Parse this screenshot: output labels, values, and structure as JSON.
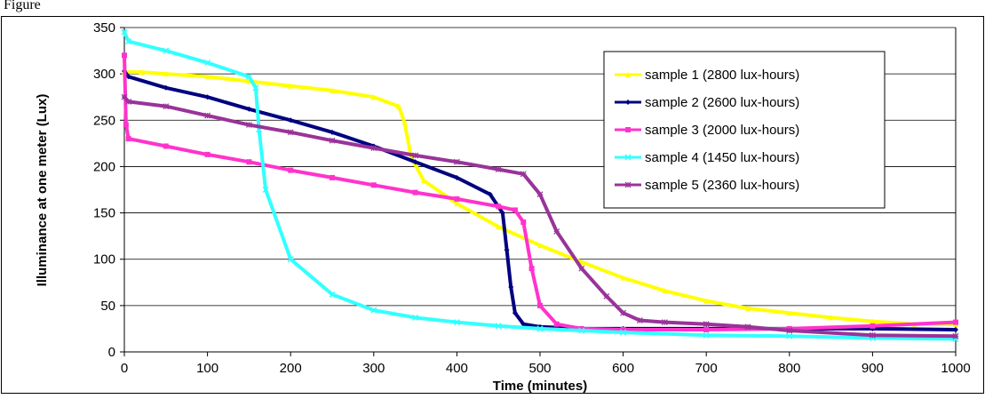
{
  "header": {
    "text": "Figure"
  },
  "chart_data": {
    "type": "line",
    "title": "",
    "xlabel": "Time (minutes)",
    "ylabel": "Illuminance at one meter (Lux)",
    "xlim": [
      0,
      1000
    ],
    "ylim": [
      0,
      350
    ],
    "xticks": [
      0,
      100,
      200,
      300,
      400,
      500,
      600,
      700,
      800,
      900,
      1000
    ],
    "yticks": [
      0,
      50,
      100,
      150,
      200,
      250,
      300,
      350
    ],
    "grid": "horizontal",
    "legend_position": "top-right",
    "series": [
      {
        "name": "sample 1 (2800 lux-hours)",
        "color": "#ffff00",
        "marker": "triangle",
        "x": [
          0,
          20,
          50,
          100,
          150,
          200,
          250,
          300,
          330,
          337,
          345,
          360,
          400,
          450,
          500,
          550,
          600,
          650,
          700,
          750,
          800,
          850,
          900,
          950,
          1000
        ],
        "y": [
          302,
          302,
          300,
          297,
          292,
          287,
          282,
          275,
          265,
          248,
          210,
          185,
          160,
          135,
          115,
          97,
          80,
          66,
          55,
          47,
          42,
          37,
          33,
          30,
          30
        ]
      },
      {
        "name": "sample 2 (2600 lux-hours)",
        "color": "#000080",
        "marker": "diamond",
        "x": [
          0,
          5,
          50,
          100,
          150,
          200,
          250,
          300,
          350,
          400,
          440,
          455,
          460,
          465,
          470,
          480,
          500,
          550,
          600,
          700,
          800,
          900,
          1000
        ],
        "y": [
          303,
          297,
          285,
          275,
          262,
          250,
          237,
          222,
          205,
          188,
          170,
          150,
          110,
          70,
          42,
          30,
          27,
          25,
          25,
          25,
          25,
          25,
          24
        ]
      },
      {
        "name": "sample 3 (2000 lux-hours)",
        "color": "#ff33cc",
        "marker": "square",
        "x": [
          0,
          2,
          5,
          50,
          100,
          150,
          200,
          250,
          300,
          350,
          400,
          450,
          470,
          480,
          490,
          500,
          520,
          550,
          600,
          700,
          800,
          900,
          1000
        ],
        "y": [
          320,
          245,
          230,
          222,
          213,
          205,
          196,
          188,
          180,
          172,
          165,
          157,
          153,
          140,
          90,
          50,
          30,
          25,
          24,
          24,
          25,
          28,
          32
        ]
      },
      {
        "name": "sample 4 (1450 lux-hours)",
        "color": "#33ffff",
        "marker": "x",
        "x": [
          0,
          5,
          50,
          100,
          150,
          158,
          162,
          170,
          200,
          250,
          300,
          350,
          400,
          450,
          500,
          550,
          600,
          700,
          800,
          900,
          1000
        ],
        "y": [
          345,
          335,
          325,
          312,
          297,
          285,
          240,
          175,
          100,
          62,
          45,
          37,
          32,
          28,
          25,
          23,
          21,
          18,
          17,
          15,
          14
        ]
      },
      {
        "name": "sample 5 (2360 lux-hours)",
        "color": "#993399",
        "marker": "star",
        "x": [
          0,
          5,
          50,
          100,
          150,
          200,
          250,
          300,
          350,
          400,
          450,
          480,
          500,
          520,
          550,
          580,
          600,
          620,
          650,
          700,
          750,
          800,
          900,
          1000
        ],
        "y": [
          275,
          270,
          265,
          255,
          245,
          237,
          228,
          220,
          212,
          205,
          197,
          192,
          170,
          130,
          90,
          60,
          42,
          34,
          32,
          30,
          27,
          23,
          18,
          17
        ]
      }
    ]
  }
}
